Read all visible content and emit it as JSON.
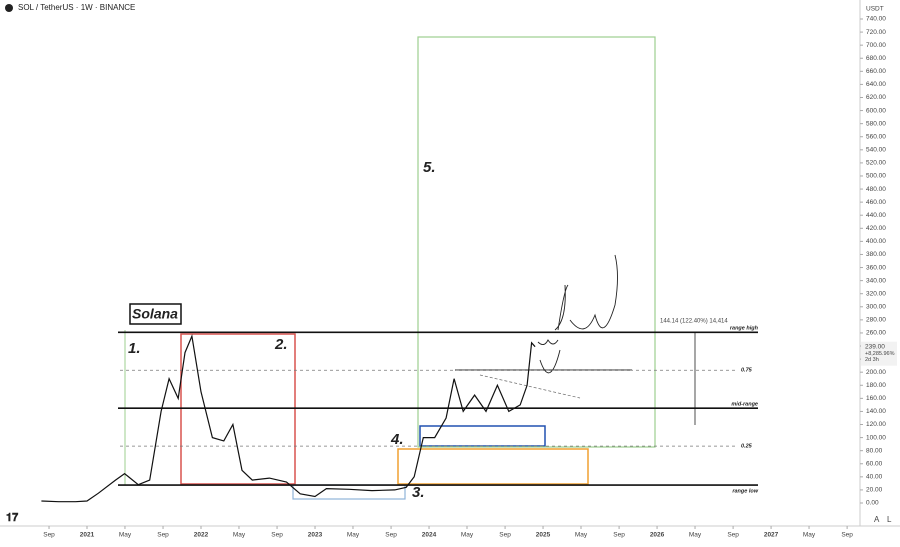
{
  "header": {
    "symbol": "SOL / TetherUS · 1W · BINANCE",
    "currency": "USDT",
    "scale_buttons": [
      "A",
      "L"
    ]
  },
  "chart_data": {
    "type": "line",
    "title": "Solana",
    "series": [
      {
        "name": "SOL / TetherUS",
        "color": "#111111",
        "x": [
          2020.6,
          2020.75,
          2020.9,
          2021.0,
          2021.1,
          2021.25,
          2021.33,
          2021.45,
          2021.55,
          2021.65,
          2021.72,
          2021.8,
          2021.86,
          2021.92,
          2022.0,
          2022.1,
          2022.2,
          2022.28,
          2022.36,
          2022.45,
          2022.6,
          2022.75,
          2022.87,
          2023.0,
          2023.1,
          2023.3,
          2023.5,
          2023.7,
          2023.8,
          2023.87,
          2023.95,
          2024.05,
          2024.15,
          2024.22,
          2024.3,
          2024.4,
          2024.5,
          2024.6,
          2024.7,
          2024.8,
          2024.86,
          2024.9,
          2024.93
        ],
        "values": [
          3,
          2,
          2,
          3,
          15,
          35,
          45,
          28,
          35,
          140,
          190,
          160,
          230,
          255,
          170,
          100,
          95,
          120,
          50,
          35,
          38,
          32,
          14,
          10,
          22,
          21,
          19,
          20,
          24,
          40,
          100,
          100,
          130,
          190,
          140,
          165,
          140,
          180,
          140,
          150,
          180,
          245,
          239
        ]
      }
    ],
    "xlim": [
      2020.237,
      2027.78
    ],
    "ylim": [
      0,
      740
    ],
    "xticks": [
      {
        "value": 2020.667,
        "label": "Sep"
      },
      {
        "value": 2021,
        "label": "2021"
      },
      {
        "value": 2021.333,
        "label": "May"
      },
      {
        "value": 2021.667,
        "label": "Sep"
      },
      {
        "value": 2022,
        "label": "2022"
      },
      {
        "value": 2022.333,
        "label": "May"
      },
      {
        "value": 2022.667,
        "label": "Sep"
      },
      {
        "value": 2023,
        "label": "2023"
      },
      {
        "value": 2023.333,
        "label": "May"
      },
      {
        "value": 2023.667,
        "label": "Sep"
      },
      {
        "value": 2024,
        "label": "2024"
      },
      {
        "value": 2024.333,
        "label": "May"
      },
      {
        "value": 2024.667,
        "label": "Sep"
      },
      {
        "value": 2025,
        "label": "2025"
      },
      {
        "value": 2025.333,
        "label": "May"
      },
      {
        "value": 2025.667,
        "label": "Sep"
      },
      {
        "value": 2026,
        "label": "2026"
      },
      {
        "value": 2026.333,
        "label": "May"
      },
      {
        "value": 2026.667,
        "label": "Sep"
      },
      {
        "value": 2027,
        "label": "2027"
      },
      {
        "value": 2027.333,
        "label": "May"
      },
      {
        "value": 2027.667,
        "label": "Sep"
      }
    ],
    "yticks": [
      {
        "value": 0,
        "label": "0.00"
      },
      {
        "value": 20,
        "label": "20.00"
      },
      {
        "value": 40,
        "label": "40.00"
      },
      {
        "value": 60,
        "label": "60.00"
      },
      {
        "value": 80,
        "label": "80.00"
      },
      {
        "value": 100,
        "label": "100.00"
      },
      {
        "value": 120,
        "label": "120.00"
      },
      {
        "value": 140,
        "label": "140.00"
      },
      {
        "value": 160,
        "label": "160.00"
      },
      {
        "value": 180,
        "label": "180.00"
      },
      {
        "value": 200,
        "label": "200.00"
      },
      {
        "value": 220,
        "label": "220.00"
      },
      {
        "value": 240,
        "label": "240.00"
      },
      {
        "value": 260,
        "label": "260.00"
      },
      {
        "value": 280,
        "label": "280.00"
      },
      {
        "value": 300,
        "label": "300.00"
      },
      {
        "value": 320,
        "label": "320.00"
      },
      {
        "value": 340,
        "label": "340.00"
      },
      {
        "value": 360,
        "label": "360.00"
      },
      {
        "value": 380,
        "label": "380.00"
      },
      {
        "value": 400,
        "label": "400.00"
      },
      {
        "value": 420,
        "label": "420.00"
      },
      {
        "value": 440,
        "label": "440.00"
      },
      {
        "value": 460,
        "label": "460.00"
      },
      {
        "value": 480,
        "label": "480.00"
      },
      {
        "value": 500,
        "label": "500.00"
      },
      {
        "value": 520,
        "label": "520.00"
      },
      {
        "value": 540,
        "label": "540.00"
      },
      {
        "value": 560,
        "label": "560.00"
      },
      {
        "value": 580,
        "label": "580.00"
      },
      {
        "value": 600,
        "label": "600.00"
      },
      {
        "value": 620,
        "label": "620.00"
      },
      {
        "value": 640,
        "label": "640.00"
      },
      {
        "value": 660,
        "label": "660.00"
      },
      {
        "value": 680,
        "label": "680.00"
      },
      {
        "value": 700,
        "label": "700.00"
      },
      {
        "value": 720,
        "label": "720.00"
      },
      {
        "value": 740,
        "label": "740.00"
      }
    ],
    "levels": [
      {
        "label": "range high",
        "value": 261
      },
      {
        "label": "0.75",
        "value": 203
      },
      {
        "label": "mid-range",
        "value": 145
      },
      {
        "label": "0.25",
        "value": 87
      },
      {
        "label": "range low",
        "value": 27.5
      }
    ],
    "price_tag": {
      "value": 239,
      "label": "239.00",
      "change": "+8,285.96%",
      "countdown": "2d 3h"
    },
    "measure": "144.14 (122.40%) 14,414",
    "annotations": [
      "1.",
      "2.",
      "3.",
      "4.",
      "5."
    ]
  }
}
